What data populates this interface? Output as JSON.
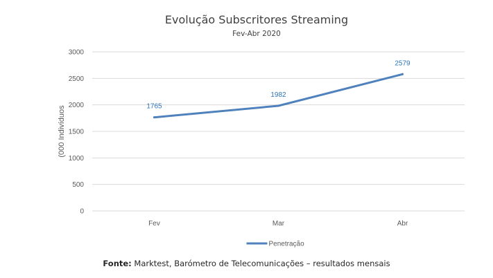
{
  "chart_data": {
    "type": "line",
    "title": "Evolução Subscritores Streaming",
    "subtitle": "Fev-Abr 2020",
    "ylabel": "(000 Indivíduos",
    "xlabel": "",
    "categories": [
      "Fev",
      "Mar",
      "Abr"
    ],
    "series": [
      {
        "name": "Penetração",
        "values": [
          1765,
          1982,
          2579
        ],
        "color": "#4f81bd"
      }
    ],
    "data_labels": [
      "1765",
      "1982",
      "2579"
    ],
    "data_label_color": "#2e75b6",
    "ylim": [
      0,
      3000
    ],
    "yticks": [
      0,
      500,
      1000,
      1500,
      2000,
      2500,
      3000
    ],
    "grid": true,
    "legend_position": "bottom"
  },
  "source": {
    "prefix": "Fonte:",
    "text": " Marktest, Barómetro de Telecomunicações – resultados mensais"
  }
}
